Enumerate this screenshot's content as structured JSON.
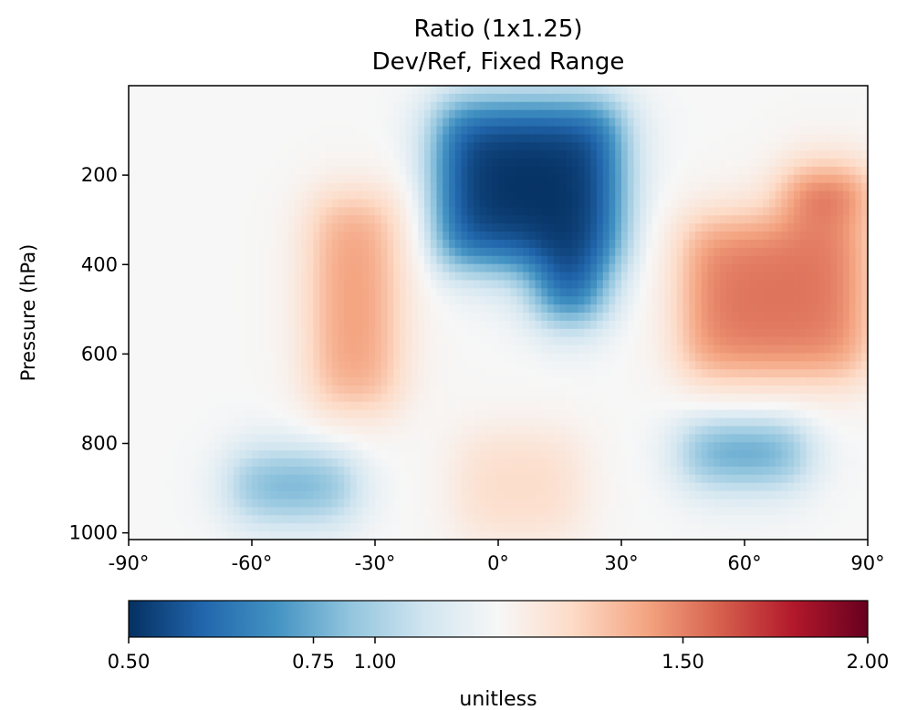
{
  "chart_data": {
    "type": "heatmap",
    "title": "Ratio (1x1.25)",
    "subtitle": "Dev/Ref, Fixed Range",
    "ylabel": "Pressure (hPa)",
    "x_ticks": [
      {
        "value": -90,
        "label": "-90°"
      },
      {
        "value": -60,
        "label": "-60°"
      },
      {
        "value": -30,
        "label": "-30°"
      },
      {
        "value": 0,
        "label": "0°"
      },
      {
        "value": 30,
        "label": "30°"
      },
      {
        "value": 60,
        "label": "60°"
      },
      {
        "value": 90,
        "label": "90°"
      }
    ],
    "y_ticks": [
      {
        "value": 200,
        "label": "200"
      },
      {
        "value": 400,
        "label": "400"
      },
      {
        "value": 600,
        "label": "600"
      },
      {
        "value": 800,
        "label": "800"
      },
      {
        "value": 1000,
        "label": "1000"
      }
    ],
    "xlim": [
      -90,
      90
    ],
    "ylim": [
      1015,
      0
    ],
    "colormap": "RdBu_r",
    "colorbar": {
      "label": "unitless",
      "range": [
        0.5,
        2.0
      ],
      "ticks": [
        {
          "value": 0.5,
          "label": "0.50"
        },
        {
          "value": 0.75,
          "label": "0.75"
        },
        {
          "value": 1.0,
          "label": "1.00"
        },
        {
          "value": 1.5,
          "label": "1.50"
        },
        {
          "value": 2.0,
          "label": "2.00"
        }
      ]
    },
    "features": [
      {
        "lat": [
          -15,
          30
        ],
        "pressure": [
          40,
          400
        ],
        "ratio": 0.5
      },
      {
        "lat": [
          10,
          25
        ],
        "pressure": [
          400,
          520
        ],
        "ratio": 0.5
      },
      {
        "lat": [
          -45,
          -25
        ],
        "pressure": [
          250,
          720
        ],
        "ratio": 1.45
      },
      {
        "lat": [
          45,
          90
        ],
        "pressure": [
          300,
          650
        ],
        "ratio": 1.55
      },
      {
        "lat": [
          70,
          90
        ],
        "pressure": [
          200,
          280
        ],
        "ratio": 1.8
      },
      {
        "lat": [
          -65,
          -35
        ],
        "pressure": [
          830,
          960
        ],
        "ratio": 0.7
      },
      {
        "lat": [
          45,
          75
        ],
        "pressure": [
          760,
          880
        ],
        "ratio": 0.65
      },
      {
        "lat": [
          -10,
          20
        ],
        "pressure": [
          780,
          1010
        ],
        "ratio": 1.2
      }
    ]
  }
}
